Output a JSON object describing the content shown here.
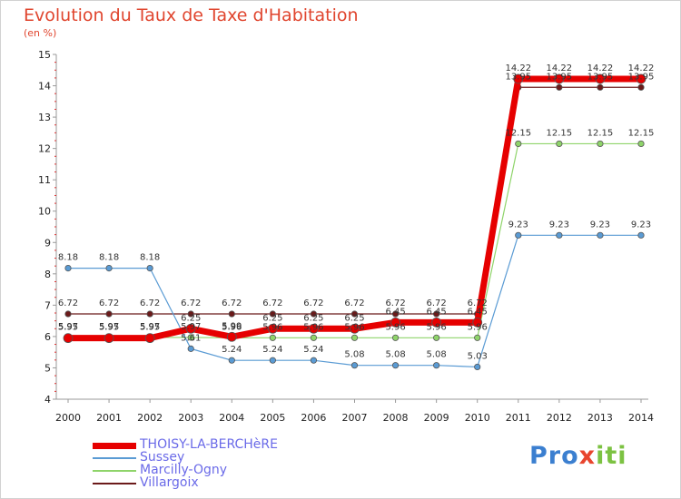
{
  "title": "Evolution du Taux de Taxe d'Habitation",
  "subtitle": "(en %)",
  "logo": {
    "p": "Pro",
    "x": "x",
    "iti": "iti"
  },
  "chart_data": {
    "type": "line",
    "x": [
      "2000",
      "2001",
      "2002",
      "2003",
      "2004",
      "2005",
      "2006",
      "2007",
      "2008",
      "2009",
      "2010",
      "2011",
      "2012",
      "2013",
      "2014"
    ],
    "yticks": [
      "4",
      "5",
      "6",
      "7",
      "8",
      "9",
      "10",
      "11",
      "12",
      "13",
      "14",
      "15"
    ],
    "ylim": [
      4,
      15
    ],
    "grid": false,
    "legend_position": "bottom-left",
    "series": [
      {
        "name": "Villargoix",
        "color": "#6b1a1a",
        "width": 1.2,
        "values": [
          6.72,
          6.72,
          6.72,
          6.72,
          6.72,
          6.72,
          6.72,
          6.72,
          6.72,
          6.72,
          6.72,
          13.95,
          13.95,
          13.95,
          13.95
        ],
        "labels": [
          "6.72",
          "6.72",
          "6.72",
          "6.72",
          "6.72",
          "6.72",
          "6.72",
          "6.72",
          "6.72",
          "6.72",
          "6.72",
          "13.95",
          "13.95",
          "13.95",
          "13.95"
        ]
      },
      {
        "name": "Marcilly-Ogny",
        "color": "#8fd46a",
        "width": 1.2,
        "values": [
          5.97,
          5.97,
          5.97,
          5.97,
          5.96,
          5.96,
          5.96,
          5.96,
          5.96,
          5.96,
          5.96,
          12.15,
          12.15,
          12.15,
          12.15
        ],
        "labels": [
          "5.97",
          "5.97",
          "5.97",
          "5.97",
          "5.96",
          "5.96",
          "5.96",
          "5.96",
          "5.96",
          "5.96",
          "5.96",
          "12.15",
          "12.15",
          "12.15",
          "12.15"
        ]
      },
      {
        "name": "Sussey",
        "color": "#5a9bd4",
        "width": 1.2,
        "values": [
          8.18,
          8.18,
          8.18,
          5.61,
          5.24,
          5.24,
          5.24,
          5.08,
          5.08,
          5.08,
          5.03,
          9.23,
          9.23,
          9.23,
          9.23
        ],
        "labels": [
          "8.18",
          "8.18",
          "8.18",
          "5.61",
          "5.24",
          "5.24",
          "5.24",
          "5.08",
          "5.08",
          "5.08",
          "5.03",
          "9.23",
          "9.23",
          "9.23",
          "9.23"
        ]
      },
      {
        "name": "THOISY-LA-BERCHèRE",
        "color": "#e60000",
        "width": 7,
        "values": [
          5.95,
          5.95,
          5.95,
          6.25,
          5.99,
          6.25,
          6.25,
          6.25,
          6.45,
          6.45,
          6.45,
          14.22,
          14.22,
          14.22,
          14.22
        ],
        "labels": [
          "5.95",
          "5.95",
          "5.95",
          "6.25",
          "5.99",
          "6.25",
          "6.25",
          "6.25",
          "6.45",
          "6.45",
          "6.45",
          "14.22",
          "14.22",
          "14.22",
          "14.22"
        ]
      }
    ]
  },
  "legend": [
    {
      "name": "THOISY-LA-BERCHèRE",
      "color": "#e60000",
      "thickness": 7
    },
    {
      "name": "Sussey",
      "color": "#5a9bd4",
      "thickness": 1.5
    },
    {
      "name": "Marcilly-Ogny",
      "color": "#8fd46a",
      "thickness": 1.5
    },
    {
      "name": "Villargoix",
      "color": "#6b1a1a",
      "thickness": 1.5
    }
  ]
}
